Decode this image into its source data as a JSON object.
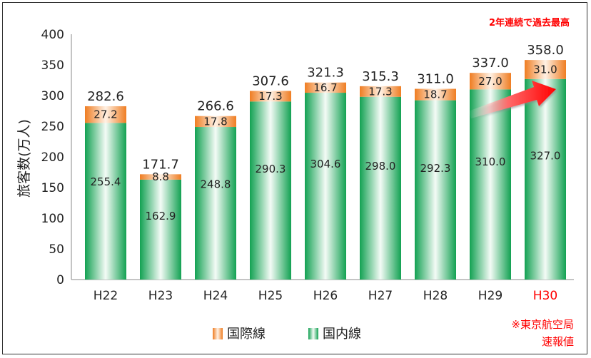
{
  "chart_data": {
    "type": "bar",
    "stacked": true,
    "categories": [
      "H22",
      "H23",
      "H24",
      "H25",
      "H26",
      "H27",
      "H28",
      "H29",
      "H30"
    ],
    "series": [
      {
        "name": "国内線",
        "values": [
          255.4,
          162.9,
          248.8,
          290.3,
          304.6,
          298.0,
          292.3,
          310.0,
          327.0
        ],
        "color": "#2db36a"
      },
      {
        "name": "国際線",
        "values": [
          27.2,
          8.8,
          17.8,
          17.3,
          16.7,
          17.3,
          18.7,
          27.0,
          31.0
        ],
        "color": "#f0822a"
      }
    ],
    "totals": [
      "282.6",
      "171.7",
      "266.6",
      "307.6",
      "321.3",
      "315.3",
      "311.0",
      "337.0",
      "358.0"
    ],
    "domestic_labels": [
      "255.4",
      "162.9",
      "248.8",
      "290.3",
      "304.6",
      "298.0",
      "292.3",
      "310.0",
      "327.0"
    ],
    "intl_labels": [
      "27.2",
      "8.8",
      "17.8",
      "17.3",
      "16.7",
      "17.3",
      "18.7",
      "27.0",
      "31.0"
    ],
    "ylabel": "旅客数(万人)",
    "ylim": [
      0,
      400
    ],
    "yticks": [
      "0",
      "50",
      "100",
      "150",
      "200",
      "250",
      "300",
      "350",
      "400"
    ],
    "highlight_category": "H30",
    "highlight_color": "#ff0000",
    "grid": false,
    "legend_placement": "bottom-center",
    "annotation": "2年連続で過去最高",
    "footnote_lines": [
      "※東京航空局",
      "速報値"
    ],
    "arrow": true
  }
}
